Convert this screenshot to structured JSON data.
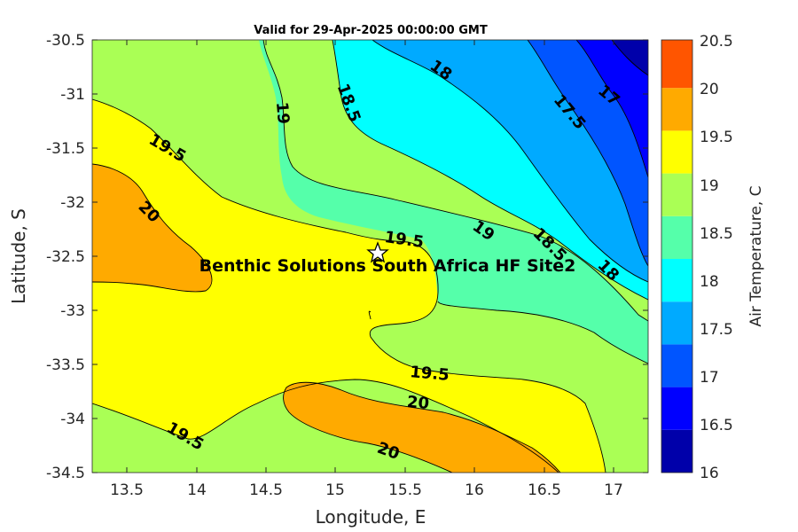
{
  "title": "Valid for 29-Apr-2025 00:00:00 GMT",
  "x_axis": {
    "label": "Longitude, E",
    "range": [
      13.25,
      17.25
    ],
    "ticks": [
      13.5,
      14,
      14.5,
      15,
      15.5,
      16,
      16.5,
      17
    ],
    "tick_labels": [
      "13.5",
      "14",
      "14.5",
      "15",
      "15.5",
      "16",
      "16.5",
      "17"
    ]
  },
  "y_axis": {
    "label": "Latitude, S",
    "range": [
      -34.5,
      -30.5
    ],
    "ticks": [
      -30.5,
      -31,
      -31.5,
      -32,
      -32.5,
      -33,
      -33.5,
      -34,
      -34.5
    ],
    "tick_labels": [
      "-30.5",
      "-31",
      "-31.5",
      "-32",
      "-32.5",
      "-33",
      "-33.5",
      "-34",
      "-34.5"
    ]
  },
  "colorbar": {
    "label": "Air Temperature, C",
    "levels": [
      16,
      16.5,
      17,
      17.5,
      18,
      18.5,
      19,
      19.5,
      20,
      20.5
    ],
    "tick_labels": [
      "16",
      "16.5",
      "17",
      "17.5",
      "18",
      "18.5",
      "19",
      "19.5",
      "20",
      "20.5"
    ],
    "colors": [
      "#0000aa",
      "#0000ff",
      "#0055ff",
      "#00aaff",
      "#00ffff",
      "#55ffaa",
      "#aaff55",
      "#ffff00",
      "#ffaa00"
    ]
  },
  "site": {
    "name": "Benthic Solutions South Africa HF Site2",
    "lon": 15.32,
    "lat": -32.47,
    "marker": "star-icon"
  },
  "contour_labels": [
    "18",
    "17.5",
    "17",
    "19",
    "18.5",
    "19.5",
    "20",
    "19.5",
    "19",
    "18.5",
    "18",
    "19.5",
    "20",
    "19.5",
    "20"
  ],
  "chart_data": {
    "type": "heatmap",
    "title": "Valid for 29-Apr-2025 00:00:00 GMT",
    "xlabel": "Longitude, E",
    "ylabel": "Latitude, S",
    "xlim": [
      13.25,
      17.25
    ],
    "ylim": [
      -34.5,
      -30.5
    ],
    "colorbar_label": "Air Temperature, C",
    "clim": [
      16,
      20.5
    ],
    "contour_interval": 0.5,
    "contour_levels_labeled": [
      17,
      17.5,
      18,
      18.5,
      19,
      19.5,
      20
    ],
    "warm_region_max": 20.0,
    "cold_corner_min": 16.0
  }
}
